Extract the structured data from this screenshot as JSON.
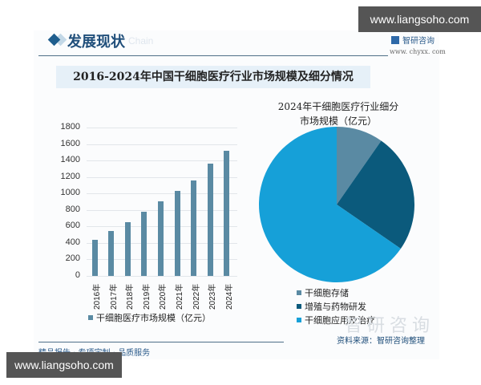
{
  "watermarks": {
    "top": "www.liangsoho.com",
    "bottom": "www.liangsoho.com",
    "center_brand": "智研咨询"
  },
  "header": {
    "section_title": "发展现状",
    "ghost_text": "Chain",
    "brand_name": "智研咨询",
    "brand_url": "www. chyxx. com"
  },
  "banner": {
    "title": "2016-2024年中国干细胞医疗行业市场规模及细分情况"
  },
  "footer": {
    "source": "资料来源：智研咨询整理",
    "tagline": "精品报告 · 专项定制 · 品质服务"
  },
  "colors": {
    "bar": "#5a8aa3",
    "pie_storage": "#5a8aa3",
    "pie_rd": "#0b5a7c",
    "pie_application": "#16a0d8",
    "header_accent": "#1f5e8e"
  },
  "chart_data": [
    {
      "type": "bar",
      "title": "",
      "categories": [
        "2016年",
        "2017年",
        "2018年",
        "2019年",
        "2020年",
        "2021年",
        "2022年",
        "2023年",
        "2024年"
      ],
      "series": [
        {
          "name": "干细胞医疗市场规模（亿元）",
          "values": [
            435,
            545,
            655,
            780,
            905,
            1035,
            1155,
            1360,
            1525
          ]
        }
      ],
      "xlabel": "",
      "ylabel": "",
      "ylim": [
        0,
        1800
      ],
      "yticks": [
        0,
        200,
        400,
        600,
        800,
        1000,
        1200,
        1400,
        1600,
        1800
      ],
      "grid": true,
      "legend_position": "bottom"
    },
    {
      "type": "pie",
      "title": "2024年干细胞医疗行业细分市场规模（亿元）",
      "categories": [
        "干细胞存储",
        "增殖与药物研发",
        "干细胞应用及治疗"
      ],
      "values": [
        9.7,
        24.9,
        65.4
      ],
      "value_unit": "percent share (estimated)",
      "legend_position": "bottom"
    }
  ],
  "bar_legend": "干细胞医疗市场规模（亿元）",
  "pie_title_line1": "2024年干细胞医疗行业细分",
  "pie_title_line2": "市场规模（亿元）",
  "pie_legend": [
    "干细胞存储",
    "增殖与药物研发",
    "干细胞应用及治疗"
  ]
}
